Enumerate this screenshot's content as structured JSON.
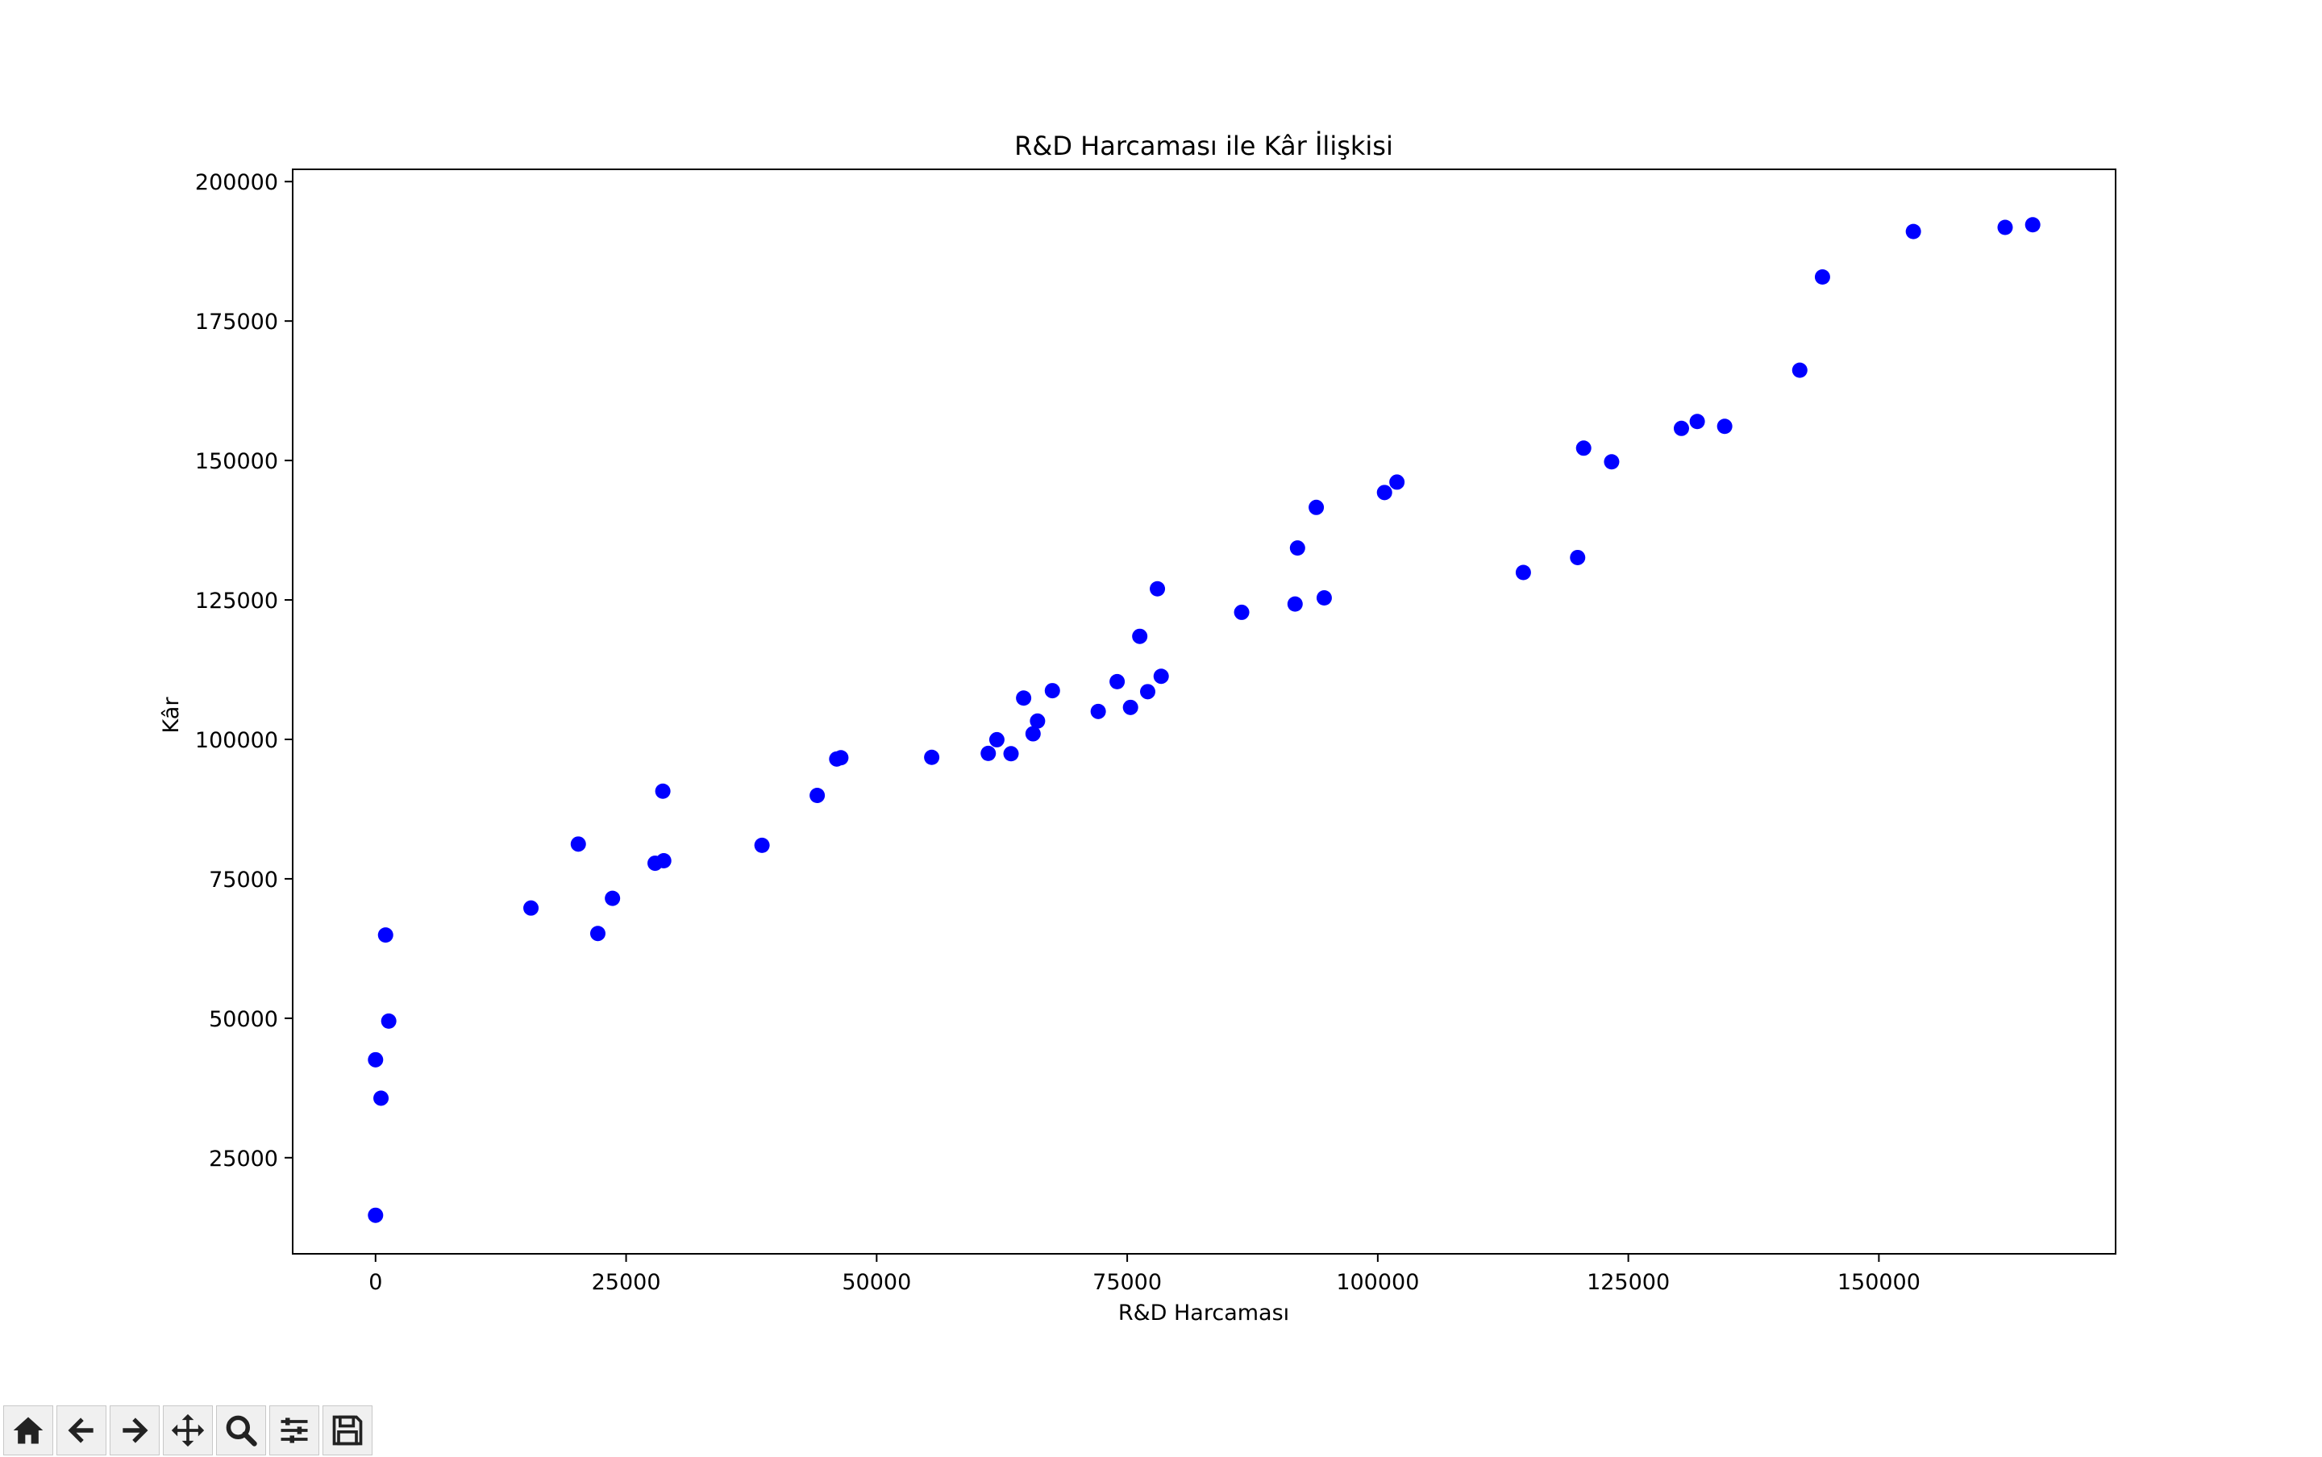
{
  "chart_data": {
    "type": "scatter",
    "title": "R&D Harcaması ile Kâr İlişkisi",
    "xlabel": "R&D Harcaması",
    "ylabel": "Kâr",
    "xlim": [
      -8270,
      173620
    ],
    "ylim": [
      7770,
      202200
    ],
    "xticks": [
      0,
      25000,
      50000,
      75000,
      100000,
      125000,
      150000
    ],
    "yticks": [
      25000,
      50000,
      75000,
      100000,
      125000,
      150000,
      175000,
      200000
    ],
    "xtick_labels": [
      "0",
      "25000",
      "50000",
      "75000",
      "100000",
      "125000",
      "150000"
    ],
    "ytick_labels": [
      "25000",
      "50000",
      "75000",
      "100000",
      "125000",
      "150000",
      "175000",
      "200000"
    ],
    "grid": false,
    "marker_color": "#0000ff",
    "points": [
      [
        165349,
        192262
      ],
      [
        162598,
        191792
      ],
      [
        153442,
        191050
      ],
      [
        144372,
        182902
      ],
      [
        142107,
        166188
      ],
      [
        131877,
        156991
      ],
      [
        134615,
        156123
      ],
      [
        130298,
        155753
      ],
      [
        120543,
        152212
      ],
      [
        123335,
        149760
      ],
      [
        101913,
        146122
      ],
      [
        100672,
        144259
      ],
      [
        93864,
        141586
      ],
      [
        91992,
        134307
      ],
      [
        119943,
        132603
      ],
      [
        114524,
        129917
      ],
      [
        78013,
        126993
      ],
      [
        94657,
        125371
      ],
      [
        91749,
        124267
      ],
      [
        86420,
        122777
      ],
      [
        76254,
        118474
      ],
      [
        78389,
        111314
      ],
      [
        73995,
        110352
      ],
      [
        67533,
        108734
      ],
      [
        77044,
        108552
      ],
      [
        64665,
        107404
      ],
      [
        75329,
        105734
      ],
      [
        72108,
        105008
      ],
      [
        66052,
        103282
      ],
      [
        65605,
        101004
      ],
      [
        61994,
        99938
      ],
      [
        61136,
        97484
      ],
      [
        63409,
        97427
      ],
      [
        55494,
        96779
      ],
      [
        46427,
        96713
      ],
      [
        46015,
        96480
      ],
      [
        28664,
        90708
      ],
      [
        44070,
        89949
      ],
      [
        20230,
        81230
      ],
      [
        38559,
        81006
      ],
      [
        28754,
        78240
      ],
      [
        27893,
        77799
      ],
      [
        23641,
        71499
      ],
      [
        15506,
        69759
      ],
      [
        22178,
        65200
      ],
      [
        1001,
        64927
      ],
      [
        1316,
        49491
      ],
      [
        0,
        42560
      ],
      [
        543,
        35674
      ],
      [
        0,
        14681
      ]
    ]
  },
  "toolbar": {
    "buttons": [
      "home",
      "back",
      "forward",
      "pan",
      "zoom",
      "configure",
      "save"
    ]
  }
}
